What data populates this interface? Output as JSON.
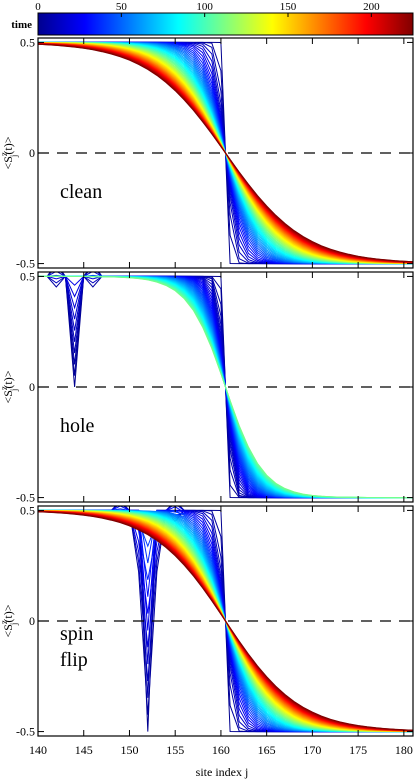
{
  "colorbar": {
    "label": "time",
    "min": 0,
    "max": 225,
    "ticks": [
      "0",
      "50",
      "100",
      "150",
      "200"
    ],
    "tick_values": [
      0,
      50,
      100,
      150,
      200
    ],
    "colormap": [
      "#00008f",
      "#0000ff",
      "#0080ff",
      "#00ffff",
      "#80ff80",
      "#ffff00",
      "#ff8000",
      "#ff0000",
      "#800000"
    ]
  },
  "chart_data": [
    {
      "type": "line",
      "panel_label": [
        "clean"
      ],
      "ylabel": "<S",
      "ylabel_sup": "z",
      "ylabel_sub": "j",
      "ylabel_tail": "(t)>",
      "xlim": [
        140,
        181
      ],
      "ylim": [
        -0.52,
        0.52
      ],
      "x_ticks": [
        140,
        145,
        150,
        155,
        160,
        165,
        170,
        175,
        180
      ],
      "y_ticks": [
        -0.5,
        0,
        0.5
      ],
      "y_tick_labels": [
        "-0.5",
        "0",
        "0.5"
      ],
      "dashed_zero_line": true,
      "step_position": 160.5,
      "time_range": [
        0,
        225
      ],
      "final_width": 8.5,
      "defect": null,
      "series_count": 60
    },
    {
      "type": "line",
      "panel_label": [
        "hole"
      ],
      "ylabel": "<S",
      "ylabel_sup": "z",
      "ylabel_sub": "j",
      "ylabel_tail": "(t)>",
      "xlim": [
        140,
        181
      ],
      "ylim": [
        -0.52,
        0.52
      ],
      "x_ticks": [
        140,
        145,
        150,
        155,
        160,
        165,
        170,
        175,
        180
      ],
      "y_ticks": [
        -0.5,
        0,
        0.5
      ],
      "y_tick_labels": [
        "-0.5",
        "0",
        "0.5"
      ],
      "dashed_zero_line": true,
      "step_position": 160.5,
      "time_range": [
        0,
        110
      ],
      "final_width": 4.0,
      "defect": {
        "site": 144,
        "kind": "hole"
      },
      "series_count": 45
    },
    {
      "type": "line",
      "panel_label": [
        "spin",
        "flip"
      ],
      "ylabel": "<S",
      "ylabel_sup": "z",
      "ylabel_sub": "j",
      "ylabel_tail": "(t)>",
      "xlim": [
        140,
        181
      ],
      "ylim": [
        -0.52,
        0.52
      ],
      "x_ticks": [
        140,
        145,
        150,
        155,
        160,
        165,
        170,
        175,
        180
      ],
      "y_ticks": [
        -0.5,
        0,
        0.5
      ],
      "y_tick_labels": [
        "-0.5",
        "0",
        "0.5"
      ],
      "dashed_zero_line": true,
      "step_position": 160.5,
      "time_range": [
        0,
        225
      ],
      "final_width": 8.0,
      "defect": {
        "site": 152,
        "kind": "flip"
      },
      "series_count": 60,
      "xlabel": "site index j"
    }
  ]
}
